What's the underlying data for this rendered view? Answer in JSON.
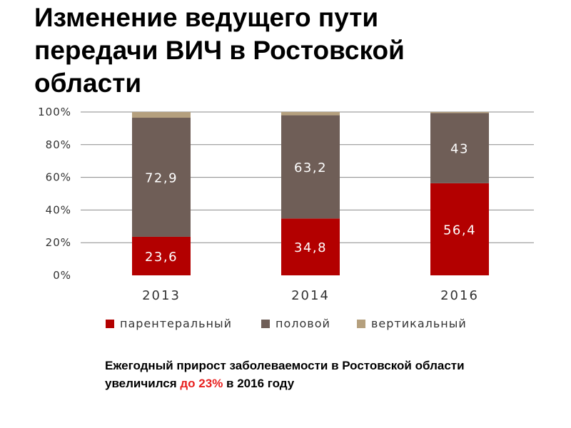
{
  "title": "Изменение ведущего пути передачи ВИЧ в Ростовской области",
  "chart_data": {
    "type": "bar",
    "stacked": true,
    "percent": true,
    "categories": [
      "2013",
      "2014",
      "2016"
    ],
    "series": [
      {
        "name": "парентеральный",
        "color": "#b30000",
        "values": [
          23.6,
          34.8,
          56.4
        ]
      },
      {
        "name": "половой",
        "color": "#6f5e57",
        "values": [
          72.9,
          63.2,
          43
        ]
      },
      {
        "name": "вертикальный",
        "color": "#b5a07e",
        "values": [
          3.5,
          2.0,
          0.6
        ]
      }
    ],
    "data_labels": [
      [
        "23,6",
        "34,8",
        "56,4"
      ],
      [
        "72,9",
        "63,2",
        "43"
      ],
      [
        "",
        "",
        ""
      ]
    ],
    "data_label_colors": [
      "#ffffff",
      "#ffffff"
    ],
    "yticks": [
      "0%",
      "20%",
      "40%",
      "60%",
      "80%",
      "100%"
    ],
    "ylim": [
      0,
      100
    ],
    "grid": true,
    "legend_position": "bottom"
  },
  "note": {
    "part1": "Ежегодный прирост заболеваемости в Ростовской области увеличился ",
    "highlight": "до 23%",
    "part2": " в 2016 году",
    "highlight_color": "#e8201f"
  }
}
